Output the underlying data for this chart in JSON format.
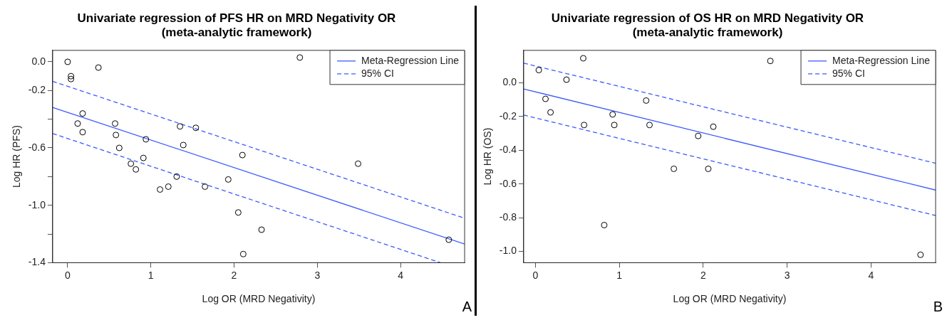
{
  "chart_data": [
    {
      "type": "scatter",
      "title": "Univariate regression of PFS HR on MRD Negativity OR\n(meta-analytic framework)",
      "xlabel": "Log OR (MRD Negativity)",
      "ylabel": "Log HR (PFS)",
      "xlim": [
        -0.18,
        4.77
      ],
      "ylim": [
        -1.4,
        0.08
      ],
      "xticks": [
        0,
        1,
        2,
        3,
        4
      ],
      "yticks": [
        {
          "value": 0,
          "label": "0.0"
        },
        -0.2,
        {
          "value": -0.4,
          "label": null
        },
        -0.6,
        {
          "value": -0.8,
          "label": null
        },
        {
          "value": -1,
          "label": "-1.0"
        },
        {
          "value": -1.2,
          "label": null
        },
        -1.4
      ],
      "grid": false,
      "legend": "top right",
      "annotations": [
        "A"
      ],
      "series": [
        {
          "marker": "circle",
          "color": "#000000",
          "x": [
            0,
            0.04,
            0.04,
            0.37,
            0.18,
            0.12,
            0.18,
            0.57,
            0.58,
            0.62,
            0.94,
            0.76,
            0.82,
            0.91,
            1.11,
            1.21,
            1.31,
            1.35,
            1.39,
            1.54,
            1.65,
            1.93,
            2.05,
            2.1,
            2.11,
            2.33,
            2.79,
            3.49,
            4.58
          ],
          "values": [
            0,
            -0.1,
            -0.12,
            -0.04,
            -0.36,
            -0.43,
            -0.49,
            -0.43,
            -0.51,
            -0.6,
            -0.54,
            -0.71,
            -0.75,
            -0.67,
            -0.89,
            -0.87,
            -0.8,
            -0.45,
            -0.58,
            -0.46,
            -0.87,
            -0.82,
            -1.05,
            -0.65,
            -1.34,
            -1.17,
            0.03,
            -0.71,
            -1.24
          ]
        },
        {
          "type": "line",
          "name": "Meta-Regression Line",
          "color": "#3d5afe",
          "line_style": "solid",
          "x": [
            -0.18,
            4.77
          ],
          "values": [
            -0.318,
            -1.27
          ]
        },
        {
          "type": "line",
          "name": "95% CI",
          "color": "#3d5afe",
          "line_style": "dashed",
          "x": [
            -0.18,
            4.77
          ],
          "values": [
            -0.136,
            -1.09
          ]
        },
        {
          "type": "line",
          "color": "#3d5afe",
          "line_style": "dashed",
          "x": [
            -0.18,
            4.48
          ],
          "values": [
            -0.5,
            -1.4
          ]
        }
      ]
    },
    {
      "type": "scatter",
      "title": "Univariate regression of OS HR on MRD Negativity OR\n(meta-analytic framework)",
      "xlabel": "Log OR (MRD Negativity)",
      "ylabel": "Log HR (OS)",
      "xlim": [
        -0.14,
        4.77
      ],
      "ylim": [
        -1.067,
        0.193
      ],
      "xticks": [
        0,
        1,
        2,
        3,
        4
      ],
      "yticks": [
        {
          "value": 0,
          "label": "0.0"
        },
        -0.2,
        -0.4,
        -0.6,
        -0.8,
        {
          "value": -1,
          "label": "-1.0"
        }
      ],
      "grid": false,
      "legend": "top right",
      "annotations": [
        "B"
      ],
      "series": [
        {
          "marker": "circle",
          "color": "#000000",
          "x": [
            0.04,
            0.12,
            0.18,
            0.37,
            0.57,
            0.58,
            0.92,
            0.94,
            0.82,
            1.32,
            1.36,
            1.65,
            1.94,
            2.06,
            2.12,
            2.8,
            4.59
          ],
          "values": [
            0.076,
            -0.095,
            -0.175,
            0.019,
            0.146,
            -0.25,
            -0.187,
            -0.25,
            -0.844,
            -0.105,
            -0.25,
            -0.51,
            -0.315,
            -0.51,
            -0.26,
            0.13,
            -1.02
          ]
        },
        {
          "type": "line",
          "name": "Meta-Regression Line",
          "color": "#3d5afe",
          "line_style": "solid",
          "x": [
            -0.14,
            4.77
          ],
          "values": [
            -0.036,
            -0.636
          ]
        },
        {
          "type": "line",
          "name": "95% CI",
          "color": "#3d5afe",
          "line_style": "dashed",
          "x": [
            -0.14,
            4.77
          ],
          "values": [
            0.117,
            -0.477
          ]
        },
        {
          "type": "line",
          "color": "#3d5afe",
          "line_style": "dashed",
          "x": [
            -0.14,
            4.77
          ],
          "values": [
            -0.191,
            -0.787
          ]
        }
      ]
    }
  ]
}
